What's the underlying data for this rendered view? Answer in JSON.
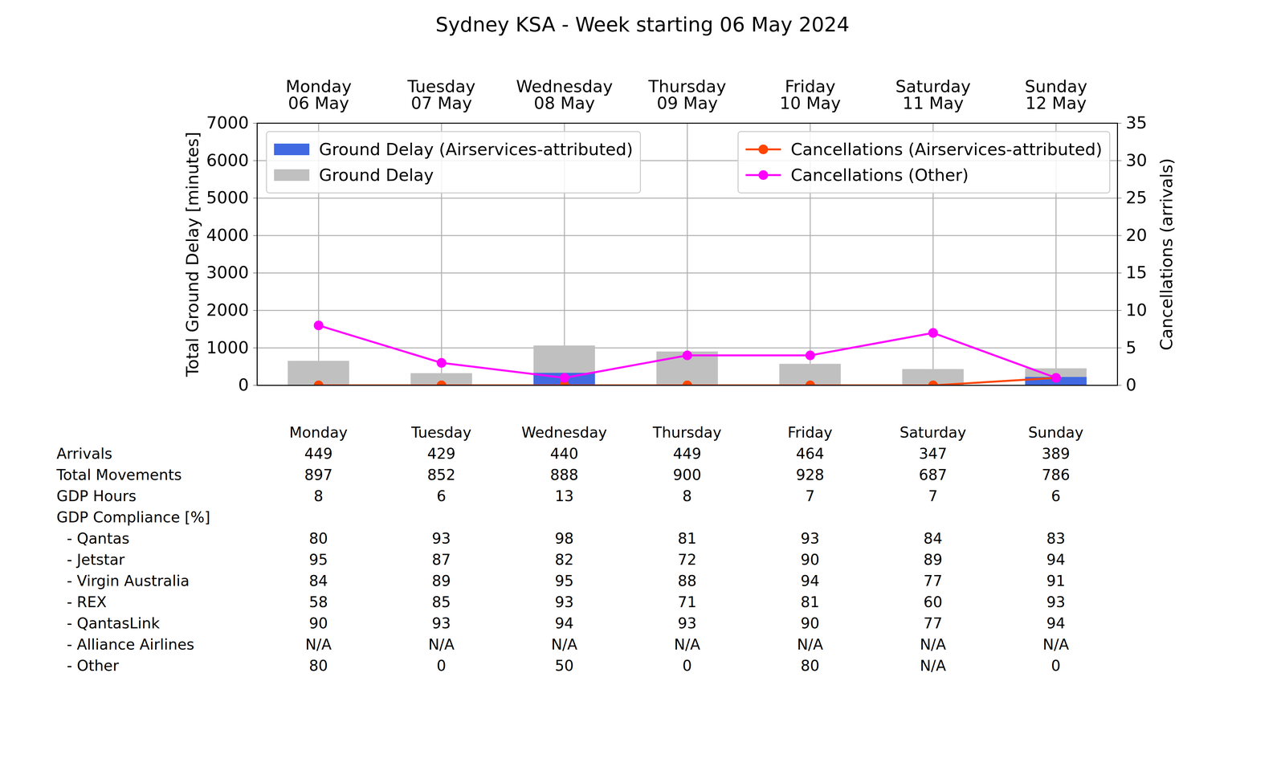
{
  "chart_data": {
    "type": "bar",
    "title": "Sydney KSA - Week starting 06 May 2024",
    "categories": [
      "Monday\n06 May",
      "Tuesday\n07 May",
      "Wednesday\n08 May",
      "Thursday\n09 May",
      "Friday\n10 May",
      "Saturday\n11 May",
      "Sunday\n12 May"
    ],
    "ylabel": "Total Ground Delay [minutes]",
    "y2label": "Cancellations (arrivals)",
    "ylim": [
      0,
      7000
    ],
    "yticks": [
      0,
      1000,
      2000,
      3000,
      4000,
      5000,
      6000,
      7000
    ],
    "y2lim": [
      0,
      35
    ],
    "y2ticks": [
      0,
      5,
      10,
      15,
      20,
      25,
      30,
      35
    ],
    "grid": true,
    "series": [
      {
        "name": "Ground Delay",
        "type": "bar",
        "color": "#c0c0c0",
        "values": [
          650,
          320,
          1060,
          900,
          570,
          430,
          450
        ]
      },
      {
        "name": "Ground Delay (Airservices-attributed)",
        "type": "bar",
        "color": "#4169e1",
        "values": [
          0,
          0,
          330,
          0,
          0,
          0,
          220
        ]
      },
      {
        "name": "Cancellations (Airservices-attributed)",
        "type": "line",
        "axis": "y2",
        "color": "#ff4500",
        "marker": "circle",
        "values": [
          0,
          0,
          0,
          0,
          0,
          0,
          1
        ]
      },
      {
        "name": "Cancellations (Other)",
        "type": "line",
        "axis": "y2",
        "color": "#ff00ff",
        "marker": "circle",
        "values": [
          8,
          3,
          1,
          4,
          4,
          7,
          1
        ]
      }
    ]
  },
  "table": {
    "columns": [
      "Monday",
      "Tuesday",
      "Wednesday",
      "Thursday",
      "Friday",
      "Saturday",
      "Sunday"
    ],
    "rows": [
      {
        "label": "Arrivals",
        "values": [
          449,
          429,
          440,
          449,
          464,
          347,
          389
        ]
      },
      {
        "label": "Total Movements",
        "values": [
          897,
          852,
          888,
          900,
          928,
          687,
          786
        ]
      },
      {
        "label": "GDP Hours",
        "values": [
          8,
          6,
          13,
          8,
          7,
          7,
          6
        ]
      }
    ],
    "gdp_compliance": {
      "label": "GDP Compliance [%]",
      "rows": [
        {
          "label": "- Qantas",
          "values": [
            80,
            93,
            98,
            81,
            93,
            84,
            83
          ]
        },
        {
          "label": "- Jetstar",
          "values": [
            95,
            87,
            82,
            72,
            90,
            89,
            94
          ]
        },
        {
          "label": "- Virgin Australia",
          "values": [
            84,
            89,
            95,
            88,
            94,
            77,
            91
          ]
        },
        {
          "label": "- REX",
          "values": [
            58,
            85,
            93,
            71,
            81,
            60,
            93
          ]
        },
        {
          "label": "- QantasLink",
          "values": [
            90,
            93,
            94,
            93,
            90,
            77,
            94
          ]
        },
        {
          "label": "- Alliance Airlines",
          "values": [
            "N/A",
            "N/A",
            "N/A",
            "N/A",
            "N/A",
            "N/A",
            "N/A"
          ]
        },
        {
          "label": "- Other",
          "values": [
            80,
            0,
            50,
            0,
            80,
            "N/A",
            0
          ]
        }
      ]
    }
  }
}
